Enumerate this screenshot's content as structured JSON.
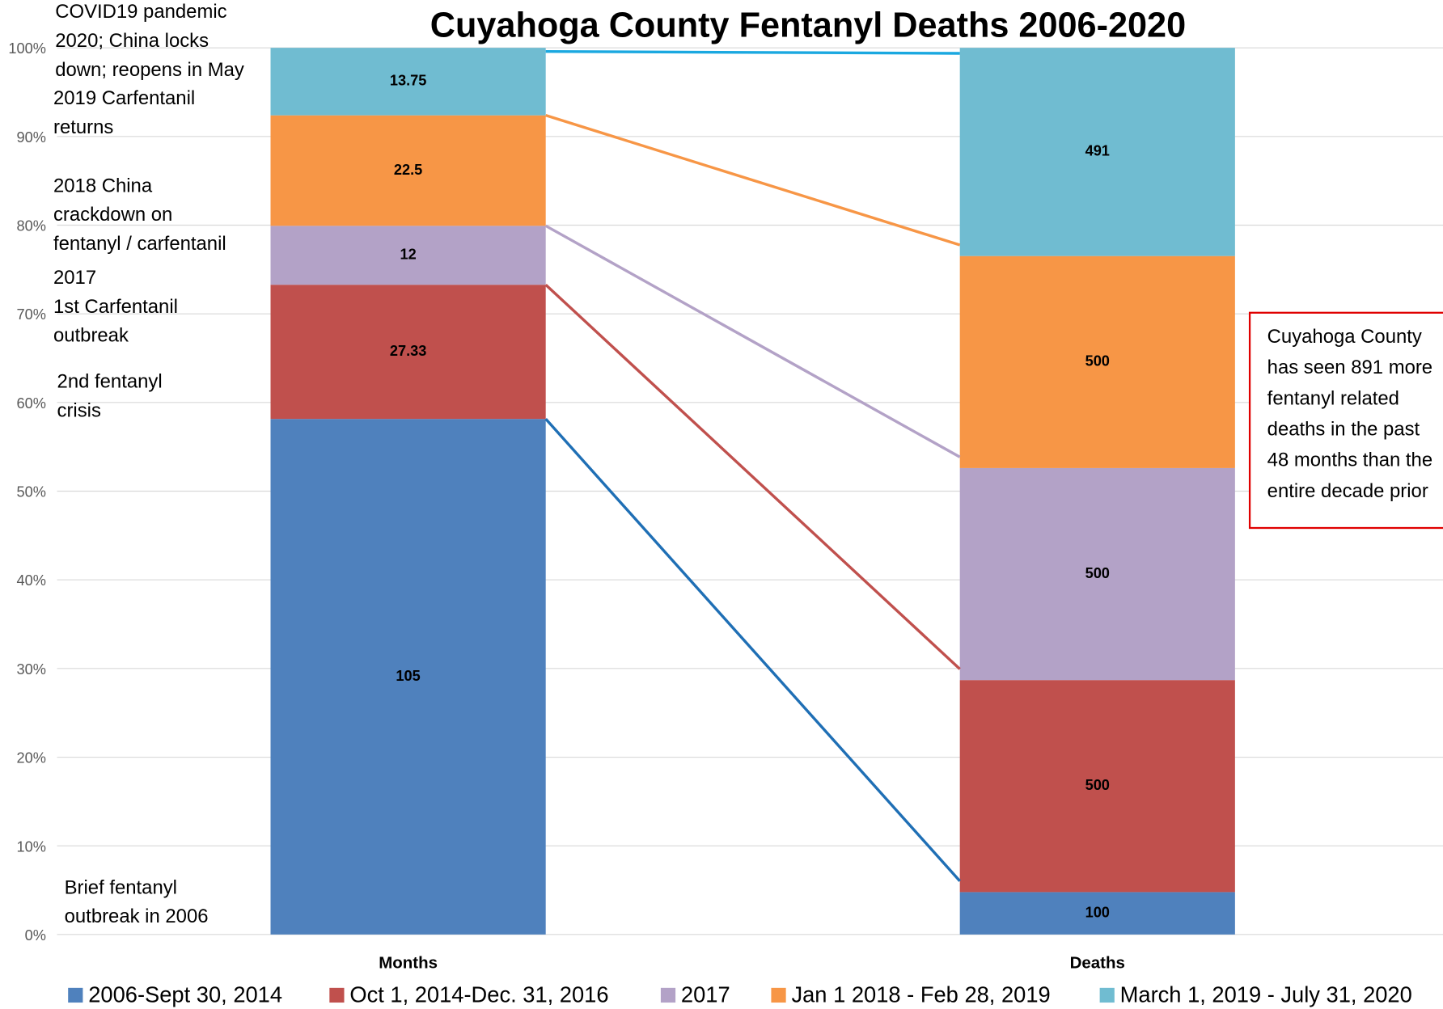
{
  "chart_data": {
    "type": "bar100",
    "title": "Cuyahoga County Fentanyl Deaths 2006-2020",
    "categories": [
      "Months",
      "Deaths"
    ],
    "series": [
      {
        "name": "2006-Sept 30, 2014",
        "color": "#4f81bd",
        "line_color": "#1f6fb5",
        "values": [
          105,
          100
        ]
      },
      {
        "name": "Oct 1, 2014-Dec. 31, 2016",
        "color": "#c0504d",
        "line_color": "#c0504d",
        "values": [
          27.33,
          500
        ]
      },
      {
        "name": "2017",
        "color": "#b3a2c7",
        "line_color": "#b3a2c7",
        "values": [
          12,
          500
        ]
      },
      {
        "name": "Jan 1 2018 - Feb 28, 2019",
        "color": "#f79646",
        "line_color": "#f79646",
        "values": [
          22.5,
          500
        ]
      },
      {
        "name": "March 1, 2019 - July 31, 2020",
        "color": "#70bcd1",
        "line_color": "#1aa8e0",
        "values": [
          13.75,
          491
        ]
      }
    ],
    "ylim": [
      0,
      100
    ],
    "yticks": [
      {
        "value": 0,
        "label": "0%"
      },
      {
        "value": 10,
        "label": "10%"
      },
      {
        "value": 20,
        "label": "20%"
      },
      {
        "value": 30,
        "label": "30%"
      },
      {
        "value": 40,
        "label": "40%"
      },
      {
        "value": 50,
        "label": "50%"
      },
      {
        "value": 60,
        "label": "60%"
      },
      {
        "value": 70,
        "label": "70%"
      },
      {
        "value": 80,
        "label": "80%"
      },
      {
        "value": 90,
        "label": "90%"
      },
      {
        "value": 100,
        "label": "100%"
      }
    ],
    "grid": true,
    "legend": "bottom",
    "annotations": [
      {
        "lines": [
          "COVID19 pandemic",
          "2020; China locks",
          "down; reopens in May"
        ]
      },
      {
        "lines": [
          "2019 Carfentanil",
          "returns"
        ]
      },
      {
        "lines": [
          "2018 China",
          "crackdown on",
          "fentanyl / carfentanil"
        ]
      },
      {
        "lines": [
          "2017",
          "1st Carfentanil",
          "outbreak"
        ]
      },
      {
        "lines": [
          "2nd fentanyl",
          "crisis"
        ]
      },
      {
        "lines": [
          "Brief fentanyl",
          "outbreak in 2006"
        ]
      }
    ],
    "callout": {
      "lines": [
        "Cuyahoga County",
        "has seen 891 more",
        "fentanyl related",
        "deaths in the past",
        "48 months than the",
        "entire decade prior"
      ]
    }
  }
}
